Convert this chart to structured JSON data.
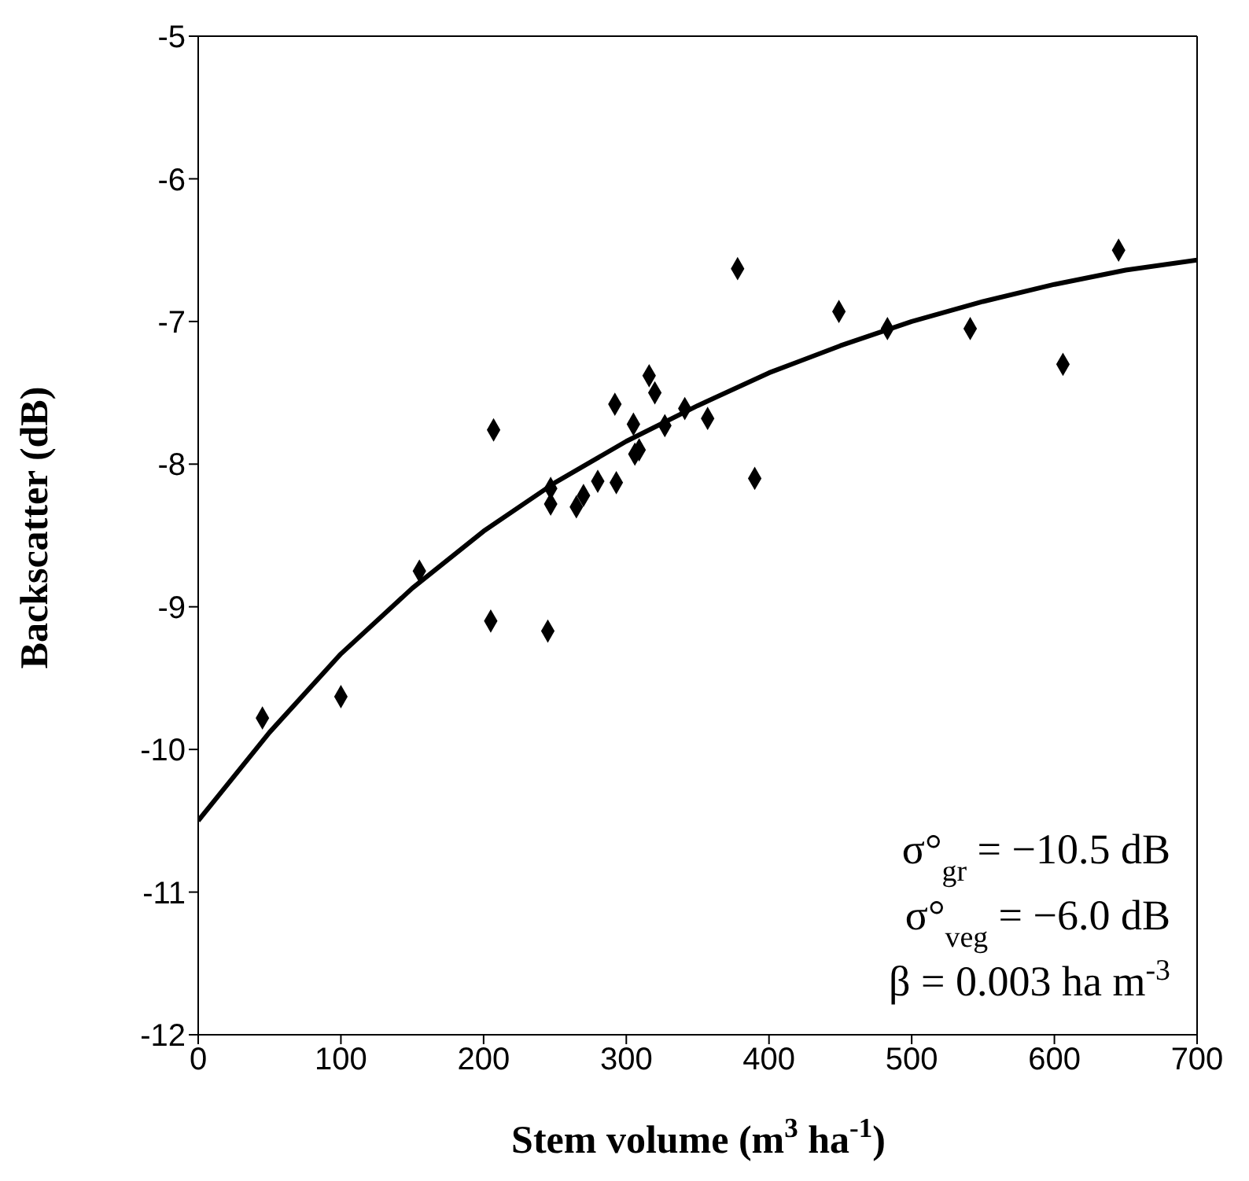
{
  "chart_data": {
    "type": "scatter",
    "xlabel": "Stem volume (m$^{3}$ ha$^{-1}$)",
    "ylabel": "Backscatter (dB)",
    "xlim": [
      0,
      700
    ],
    "xticks": [
      0,
      100,
      200,
      300,
      400,
      500,
      600,
      700
    ],
    "ylim": [
      -12,
      -5
    ],
    "yticks": [
      -12,
      -11,
      -10,
      -9,
      -8,
      -7,
      -6,
      -5
    ],
    "marker": "diamond",
    "annotations": [
      "σ°$_{gr}$ = −10.5 dB",
      "σ°$_{veg}$ = −6.0 dB",
      "β = 0.003 ha m$^{-3}$"
    ],
    "series": [
      {
        "color": "#000000",
        "x": [
          45,
          100,
          155,
          205,
          207,
          245,
          247,
          247,
          265,
          270,
          280,
          292,
          293,
          305,
          306,
          309,
          316,
          320,
          327,
          341,
          357,
          378,
          390,
          449,
          483,
          541,
          606,
          645
        ],
        "values": [
          -9.78,
          -9.63,
          -8.75,
          -9.1,
          -7.76,
          -9.17,
          -8.17,
          -8.28,
          -8.3,
          -8.22,
          -8.12,
          -7.58,
          -8.13,
          -7.72,
          -7.93,
          -7.9,
          -7.38,
          -7.5,
          -7.73,
          -7.61,
          -7.68,
          -6.63,
          -8.1,
          -6.93,
          -7.05,
          -7.05,
          -7.3,
          -6.5
        ]
      },
      {
        "type": "line",
        "color": "#000000",
        "marker": "none",
        "line_style": "solid",
        "x": [
          0,
          50,
          100,
          150,
          200,
          250,
          300,
          350,
          400,
          450,
          500,
          550,
          600,
          650,
          700
        ],
        "values": [
          -10.5,
          -9.88,
          -9.33,
          -8.87,
          -8.47,
          -8.13,
          -7.84,
          -7.59,
          -7.36,
          -7.17,
          -7.0,
          -6.86,
          -6.74,
          -6.64,
          -6.57
        ]
      }
    ]
  }
}
